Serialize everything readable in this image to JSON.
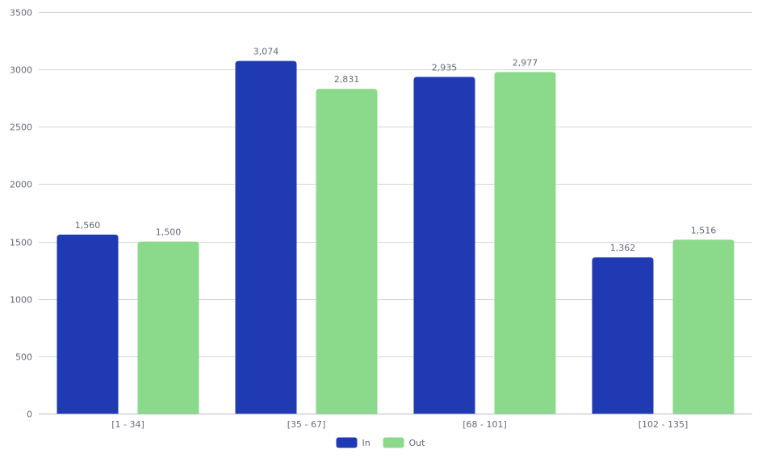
{
  "chart_data": {
    "type": "bar",
    "title": "",
    "xlabel": "",
    "ylabel": "",
    "categories": [
      "[1 - 34]",
      "[35 - 67]",
      "[68 - 101]",
      "[102 - 135]"
    ],
    "series": [
      {
        "name": "In",
        "color": "#1f3ab3",
        "values": [
          1560,
          3074,
          2935,
          1362
        ],
        "labels": [
          "1,560",
          "3,074",
          "2,935",
          "1,362"
        ]
      },
      {
        "name": "Out",
        "color": "#8bd98b",
        "values": [
          1500,
          2831,
          2977,
          1516
        ],
        "labels": [
          "1,500",
          "2,831",
          "2,977",
          "1,516"
        ]
      }
    ],
    "ylim": [
      0,
      3500
    ],
    "yticks": [
      0,
      500,
      1000,
      1500,
      2000,
      2500,
      3000,
      3500
    ],
    "ytick_labels": [
      "0",
      "500",
      "1000",
      "1500",
      "2000",
      "2500",
      "3000",
      "3500"
    ],
    "grid": true,
    "legend_position": "bottom-center"
  }
}
